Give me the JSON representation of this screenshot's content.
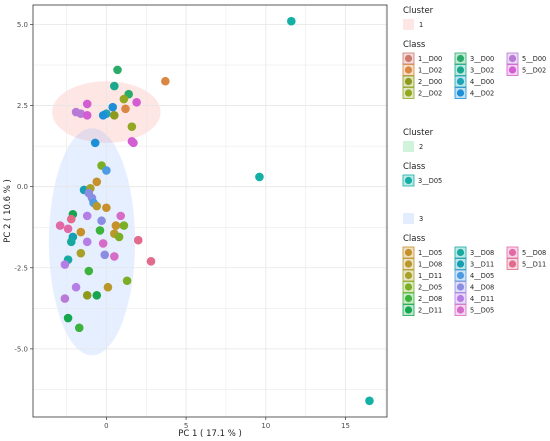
{
  "chart_data": {
    "type": "scatter",
    "title": "",
    "xlabel": "PC 1 ( 17.1 % )",
    "ylabel": "PC 2 ( 10.6 % )",
    "xlim": [
      -4.6,
      17.6
    ],
    "ylim": [
      -7.1,
      5.6
    ],
    "xticks": [
      0,
      5,
      10,
      15
    ],
    "yticks": [
      5.0,
      2.5,
      0.0,
      -2.5,
      -5.0
    ],
    "xtick_labels": [
      "0",
      "5",
      "10",
      "15"
    ],
    "ytick_labels": [
      "5.0",
      "2.5",
      "0.0",
      "-2.5",
      "-5.0"
    ],
    "grid": true,
    "legend_position": "right",
    "clusters": [
      {
        "name": "1",
        "color": "#f8766d",
        "ellipse": {
          "cx": 0.0,
          "cy": 2.3,
          "rx": 3.4,
          "ry": 0.95
        }
      },
      {
        "name": "2",
        "color": "#00ba38",
        "ellipse": null
      },
      {
        "name": "3",
        "color": "#619cff",
        "ellipse": {
          "cx": -0.9,
          "cy": -1.7,
          "rx": 2.7,
          "ry": 3.5
        }
      }
    ],
    "legend_groups": [
      {
        "cluster_title": "Cluster",
        "cluster_label": "1",
        "cluster_color": "#f8766d",
        "class_title": "Class",
        "entries": [
          {
            "label": "1__D00",
            "color": "#cd7a6e"
          },
          {
            "label": "1__D02",
            "color": "#d98742"
          },
          {
            "label": "2__D00",
            "color": "#8e9a1c"
          },
          {
            "label": "2__D02",
            "color": "#92a823"
          },
          {
            "label": "3__D00",
            "color": "#2bab6a"
          },
          {
            "label": "3__D02",
            "color": "#1aa98f"
          },
          {
            "label": "4__D00",
            "color": "#1ea3b7"
          },
          {
            "label": "4__D02",
            "color": "#1d8fd6"
          },
          {
            "label": "5__D00",
            "color": "#b87ad6"
          },
          {
            "label": "5__D02",
            "color": "#d35ed2"
          }
        ]
      },
      {
        "cluster_title": "Cluster",
        "cluster_label": "2",
        "cluster_color": "#00ba38",
        "class_title": "Class",
        "entries": [
          {
            "label": "3__D05",
            "color": "#14b0a5"
          }
        ]
      },
      {
        "cluster_title": "",
        "cluster_label": "3",
        "cluster_color": "#619cff",
        "class_title": "Class",
        "entries": [
          {
            "label": "1__D05",
            "color": "#c6902a"
          },
          {
            "label": "1__D08",
            "color": "#b8982a"
          },
          {
            "label": "1__D11",
            "color": "#a9a02b"
          },
          {
            "label": "2__D05",
            "color": "#7cae25"
          },
          {
            "label": "2__D08",
            "color": "#3bb33c"
          },
          {
            "label": "2__D11",
            "color": "#15a64e"
          },
          {
            "label": "3__D08",
            "color": "#17aaa0"
          },
          {
            "label": "3__D11",
            "color": "#169eb3"
          },
          {
            "label": "4__D05",
            "color": "#4d9be0"
          },
          {
            "label": "4__D08",
            "color": "#8b8de3"
          },
          {
            "label": "4__D11",
            "color": "#b57de6"
          },
          {
            "label": "5__D05",
            "color": "#d66bc8"
          },
          {
            "label": "5__D08",
            "color": "#e069a6"
          },
          {
            "label": "5__D11",
            "color": "#e26a8a"
          }
        ]
      }
    ],
    "points": [
      {
        "x": 11.6,
        "y": 5.1,
        "color": "#14b0a5"
      },
      {
        "x": 9.6,
        "y": 0.3,
        "color": "#14b0a5"
      },
      {
        "x": 16.5,
        "y": -6.6,
        "color": "#14b0a5"
      },
      {
        "x": 0.7,
        "y": 3.6,
        "color": "#2bab6a"
      },
      {
        "x": 3.7,
        "y": 3.25,
        "color": "#d98742"
      },
      {
        "x": 0.5,
        "y": 3.1,
        "color": "#1aa98f"
      },
      {
        "x": 1.4,
        "y": 2.85,
        "color": "#2bab6a"
      },
      {
        "x": 1.1,
        "y": 2.7,
        "color": "#92a823"
      },
      {
        "x": 1.9,
        "y": 2.6,
        "color": "#d35ed2"
      },
      {
        "x": -1.2,
        "y": 2.55,
        "color": "#d35ed2"
      },
      {
        "x": 0.4,
        "y": 2.45,
        "color": "#1d8fd6"
      },
      {
        "x": 1.2,
        "y": 2.4,
        "color": "#d98742"
      },
      {
        "x": -1.9,
        "y": 2.3,
        "color": "#b87ad6"
      },
      {
        "x": -1.6,
        "y": 2.25,
        "color": "#b87ad6"
      },
      {
        "x": 0.0,
        "y": 2.25,
        "color": "#1ea3b7"
      },
      {
        "x": -0.2,
        "y": 2.2,
        "color": "#1d8fd6"
      },
      {
        "x": -1.2,
        "y": 2.2,
        "color": "#d35ed2"
      },
      {
        "x": 0.5,
        "y": 2.2,
        "color": "#8e9a1c"
      },
      {
        "x": 1.6,
        "y": 1.85,
        "color": "#92a823"
      },
      {
        "x": 1.6,
        "y": 1.4,
        "color": "#d35ed2"
      },
      {
        "x": 1.7,
        "y": 1.35,
        "color": "#d35ed2"
      },
      {
        "x": -0.7,
        "y": 1.35,
        "color": "#1d8fd6"
      },
      {
        "x": -0.3,
        "y": 0.65,
        "color": "#7cae25"
      },
      {
        "x": 0.0,
        "y": 0.5,
        "color": "#4d9be0"
      },
      {
        "x": -0.6,
        "y": 0.15,
        "color": "#c6902a"
      },
      {
        "x": -1.4,
        "y": -0.1,
        "color": "#169eb3"
      },
      {
        "x": -1.0,
        "y": -0.05,
        "color": "#a9a02b"
      },
      {
        "x": -1.1,
        "y": -0.2,
        "color": "#8b8de3"
      },
      {
        "x": -0.9,
        "y": -0.35,
        "color": "#8b8de3"
      },
      {
        "x": -0.8,
        "y": -0.5,
        "color": "#4d9be0"
      },
      {
        "x": -0.6,
        "y": -0.6,
        "color": "#b8982a"
      },
      {
        "x": 0.0,
        "y": -0.65,
        "color": "#c6902a"
      },
      {
        "x": -2.1,
        "y": -0.85,
        "color": "#15a64e"
      },
      {
        "x": -1.2,
        "y": -0.9,
        "color": "#b57de6"
      },
      {
        "x": 0.9,
        "y": -0.9,
        "color": "#d66bc8"
      },
      {
        "x": -2.2,
        "y": -1.0,
        "color": "#e26a8a"
      },
      {
        "x": -0.3,
        "y": -1.05,
        "color": "#8b8de3"
      },
      {
        "x": 0.6,
        "y": -1.2,
        "color": "#c6902a"
      },
      {
        "x": -2.9,
        "y": -1.2,
        "color": "#e069a6"
      },
      {
        "x": 1.1,
        "y": -1.2,
        "color": "#7cae25"
      },
      {
        "x": -2.4,
        "y": -1.3,
        "color": "#e069a6"
      },
      {
        "x": -0.4,
        "y": -1.35,
        "color": "#3bb33c"
      },
      {
        "x": -1.6,
        "y": -1.4,
        "color": "#c6902a"
      },
      {
        "x": 0.5,
        "y": -1.45,
        "color": "#b8982a"
      },
      {
        "x": -2.1,
        "y": -1.55,
        "color": "#169eb3"
      },
      {
        "x": 0.8,
        "y": -1.55,
        "color": "#7cae25"
      },
      {
        "x": -0.2,
        "y": -1.75,
        "color": "#d66bc8"
      },
      {
        "x": 2.0,
        "y": -1.65,
        "color": "#e26a8a"
      },
      {
        "x": -1.2,
        "y": -1.7,
        "color": "#b57de6"
      },
      {
        "x": -2.2,
        "y": -1.7,
        "color": "#17aaa0"
      },
      {
        "x": -1.6,
        "y": -2.05,
        "color": "#a9a02b"
      },
      {
        "x": -0.1,
        "y": -2.1,
        "color": "#8b8de3"
      },
      {
        "x": 0.5,
        "y": -2.15,
        "color": "#d66bc8"
      },
      {
        "x": -2.4,
        "y": -2.25,
        "color": "#17aaa0"
      },
      {
        "x": 2.8,
        "y": -2.3,
        "color": "#e26a8a"
      },
      {
        "x": -2.6,
        "y": -2.4,
        "color": "#b57de6"
      },
      {
        "x": -1.1,
        "y": -2.6,
        "color": "#3bb33c"
      },
      {
        "x": 1.3,
        "y": -2.9,
        "color": "#7cae25"
      },
      {
        "x": -1.9,
        "y": -3.1,
        "color": "#b57de6"
      },
      {
        "x": 0.1,
        "y": -3.1,
        "color": "#b8982a"
      },
      {
        "x": -0.6,
        "y": -3.35,
        "color": "#15a64e"
      },
      {
        "x": -1.2,
        "y": -3.35,
        "color": "#8e9a1c"
      },
      {
        "x": -2.6,
        "y": -3.45,
        "color": "#b87ad6"
      },
      {
        "x": -2.4,
        "y": -4.05,
        "color": "#15a64e"
      },
      {
        "x": -1.7,
        "y": -4.35,
        "color": "#3bb33c"
      }
    ]
  }
}
